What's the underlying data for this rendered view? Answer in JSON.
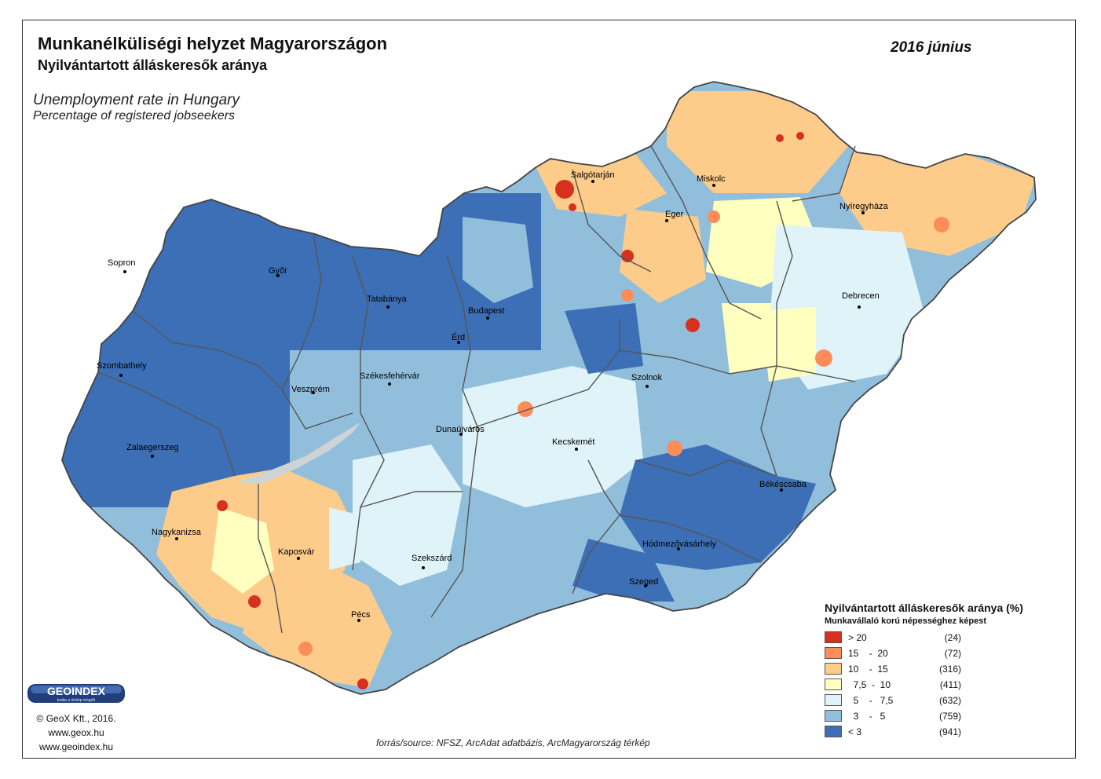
{
  "titles": {
    "hu_main": "Munkanélküliségi helyzet Magyarországon",
    "hu_sub": "Nyilvántartott álláskeresők aránya",
    "en_main": "Unemployment rate in Hungary",
    "en_sub": "Percentage of registered jobseekers",
    "date": "2016 június"
  },
  "colors": {
    "gt20": "#d7301f",
    "c15_20": "#fc8d59",
    "c10_15": "#fdcc8a",
    "c7_10": "#ffffbf",
    "c5_7": "#e0f3f8",
    "c3_5": "#91bfdb",
    "lt3": "#3c6fb5",
    "lake": "#cfd3d6",
    "border": "#555555"
  },
  "legend": {
    "title": "Nyilvántartott álláskeresők aránya (%)",
    "subtitle": "Munkavállaló korú népességhez képest",
    "classes": [
      {
        "label": "> 20",
        "count": "(24)",
        "color_key": "gt20"
      },
      {
        "label": "15    -  20",
        "count": "(72)",
        "color_key": "c15_20"
      },
      {
        "label": "10    -  15",
        "count": "(316)",
        "color_key": "c10_15"
      },
      {
        "label": "  7,5  -  10",
        "count": "(411)",
        "color_key": "c7_10"
      },
      {
        "label": "  5    -   7,5",
        "count": "(632)",
        "color_key": "c5_7"
      },
      {
        "label": "  3    -   5",
        "count": "(759)",
        "color_key": "c3_5"
      },
      {
        "label": "< 3",
        "count": "(941)",
        "color_key": "lt3"
      }
    ]
  },
  "cities": [
    {
      "name": "Salgótarján"
    },
    {
      "name": "Miskolc"
    },
    {
      "name": "Eger"
    },
    {
      "name": "Nyíregyháza"
    },
    {
      "name": "Sopron"
    },
    {
      "name": "Győr"
    },
    {
      "name": "Tatabánya"
    },
    {
      "name": "Budapest"
    },
    {
      "name": "Érd"
    },
    {
      "name": "Debrecen"
    },
    {
      "name": "Szombathely"
    },
    {
      "name": "Veszprém"
    },
    {
      "name": "Székesfehérvár"
    },
    {
      "name": "Szolnok"
    },
    {
      "name": "Dunaújváros"
    },
    {
      "name": "Kecskemét"
    },
    {
      "name": "Zalaegerszeg"
    },
    {
      "name": "Békéscsaba"
    },
    {
      "name": "Nagykanizsa"
    },
    {
      "name": "Kaposvár"
    },
    {
      "name": "Hódmezővásárhely"
    },
    {
      "name": "Szekszárd"
    },
    {
      "name": "Szeged"
    },
    {
      "name": "Pécs"
    }
  ],
  "logo": {
    "text": "GEOINDEX",
    "tagline": "tudás a térkép mögött"
  },
  "credit": {
    "line1": "© GeoX Kft., 2016.",
    "line2": "www.geox.hu",
    "line3": "www.geoindex.hu"
  },
  "source": "forrás/source: NFSZ, ArcAdat adatbázis, ArcMagyarország térkép"
}
